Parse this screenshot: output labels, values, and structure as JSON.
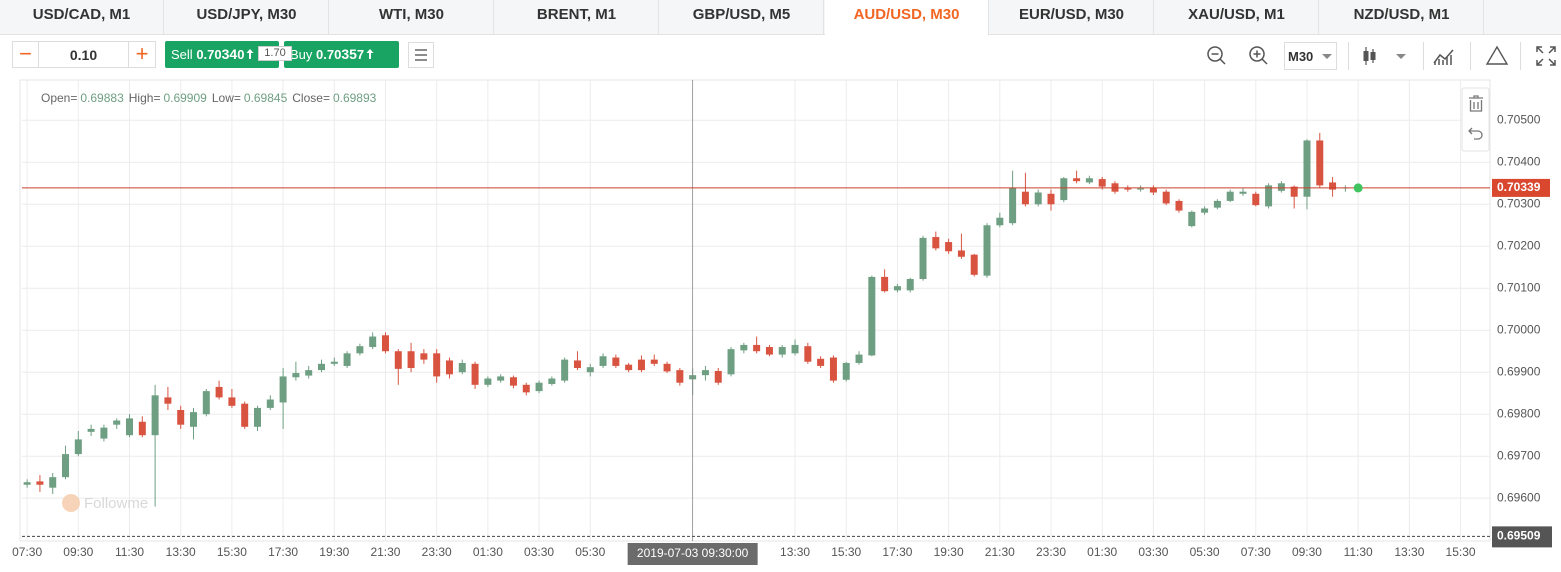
{
  "tabs": [
    "USD/CAD, M1",
    "USD/JPY, M30",
    "WTI, M30",
    "BRENT, M1",
    "GBP/USD, M5",
    "AUD/USD, M30",
    "EUR/USD, M30",
    "XAU/USD, M1",
    "NZD/USD, M1"
  ],
  "active_tab": 5,
  "toolbar": {
    "lot": "0.10",
    "sell_label": "Sell",
    "sell_head": "0.70",
    "sell_big": "34",
    "sell_tail": "0",
    "spread": "1.70",
    "buy_label": "Buy",
    "buy_head": "0.70",
    "buy_big": "35",
    "buy_tail": "7",
    "timeframe": "M30"
  },
  "chart_data": {
    "type": "candlestick",
    "ohlc_labels": [
      "Open=",
      "High=",
      "Low=",
      "Close="
    ],
    "watermark": "Followme",
    "up_color": "#6f9f82",
    "down_color": "#d95440",
    "open": [
      0.69632,
      0.6964,
      0.69625,
      0.6965,
      0.69705,
      0.69758,
      0.69742,
      0.69775,
      0.6975,
      0.69782,
      0.6975,
      0.6984,
      0.6981,
      0.6977,
      0.698,
      0.69865,
      0.6984,
      0.69825,
      0.6977,
      0.69815,
      0.69828,
      0.69888,
      0.69892,
      0.69905,
      0.6992,
      0.69915,
      0.69945,
      0.6996,
      0.69988,
      0.6995,
      0.6995,
      0.69945,
      0.69945,
      0.69928,
      0.699,
      0.6992,
      0.6987,
      0.6988,
      0.69888,
      0.6987,
      0.69855,
      0.69872,
      0.6988,
      0.69928,
      0.699,
      0.69915,
      0.69935,
      0.69918,
      0.6993,
      0.6993,
      0.6992,
      0.69905,
      0.69883,
      0.69893,
      0.69903,
      0.69895,
      0.69952,
      0.69965,
      0.6996,
      0.69942,
      0.69945,
      0.69962,
      0.69932,
      0.69935,
      0.69882,
      0.69922,
      0.6994,
      0.70127,
      0.70095,
      0.70095,
      0.70122,
      0.70222,
      0.7021,
      0.7019,
      0.7018,
      0.7013,
      0.7025,
      0.70255,
      0.7033,
      0.703,
      0.70325,
      0.7031,
      0.70362,
      0.70352,
      0.7036,
      0.7035,
      0.70338,
      0.70335,
      0.7034,
      0.7033,
      0.70308,
      0.70248,
      0.7028,
      0.70292,
      0.70308,
      0.70325,
      0.70325,
      0.70295,
      0.70332,
      0.70342,
      0.70318,
      0.70452,
      0.70352,
      0.70338
    ],
    "high": [
      0.69645,
      0.69655,
      0.6966,
      0.69725,
      0.6976,
      0.69775,
      0.69775,
      0.6979,
      0.698,
      0.69795,
      0.6987,
      0.69865,
      0.6982,
      0.69815,
      0.6986,
      0.6988,
      0.6986,
      0.6983,
      0.6982,
      0.69845,
      0.6991,
      0.69925,
      0.69915,
      0.6993,
      0.69935,
      0.6995,
      0.69968,
      0.69995,
      0.69995,
      0.69955,
      0.6997,
      0.69955,
      0.69955,
      0.69935,
      0.6993,
      0.69925,
      0.6989,
      0.69895,
      0.69892,
      0.69875,
      0.6988,
      0.6989,
      0.69935,
      0.6995,
      0.6992,
      0.69945,
      0.69942,
      0.69922,
      0.6994,
      0.69942,
      0.69925,
      0.6991,
      0.69909,
      0.69915,
      0.6991,
      0.6996,
      0.6997,
      0.69985,
      0.69965,
      0.69965,
      0.69978,
      0.6997,
      0.69938,
      0.6994,
      0.69925,
      0.6995,
      0.7013,
      0.70145,
      0.7011,
      0.70125,
      0.70225,
      0.70235,
      0.70218,
      0.7023,
      0.70182,
      0.70255,
      0.7028,
      0.7038,
      0.70375,
      0.70335,
      0.70335,
      0.70365,
      0.7038,
      0.70368,
      0.70365,
      0.70355,
      0.70345,
      0.70345,
      0.70345,
      0.70335,
      0.70312,
      0.70285,
      0.70295,
      0.70312,
      0.70335,
      0.70338,
      0.7033,
      0.7035,
      0.70355,
      0.70345,
      0.70455,
      0.7047,
      0.70365,
      0.70345
    ],
    "low": [
      0.69625,
      0.69615,
      0.6961,
      0.69645,
      0.697,
      0.69748,
      0.69735,
      0.69765,
      0.69745,
      0.69745,
      0.6958,
      0.6981,
      0.69765,
      0.6974,
      0.69795,
      0.69835,
      0.69815,
      0.69765,
      0.6976,
      0.6981,
      0.69765,
      0.6988,
      0.69885,
      0.699,
      0.69915,
      0.6991,
      0.6994,
      0.69955,
      0.69945,
      0.6987,
      0.699,
      0.6992,
      0.69875,
      0.69885,
      0.69895,
      0.6986,
      0.69865,
      0.69875,
      0.69862,
      0.69845,
      0.6985,
      0.69868,
      0.69875,
      0.69905,
      0.6989,
      0.6991,
      0.6991,
      0.699,
      0.699,
      0.69915,
      0.69898,
      0.69868,
      0.69845,
      0.6988,
      0.6987,
      0.6989,
      0.69945,
      0.69945,
      0.69938,
      0.69935,
      0.6994,
      0.6992,
      0.6991,
      0.69875,
      0.69878,
      0.69918,
      0.69938,
      0.7009,
      0.7009,
      0.7009,
      0.70118,
      0.7019,
      0.70182,
      0.7017,
      0.70128,
      0.70125,
      0.70245,
      0.7025,
      0.70295,
      0.70295,
      0.70285,
      0.70305,
      0.7035,
      0.70348,
      0.70335,
      0.70325,
      0.7033,
      0.7033,
      0.70322,
      0.70298,
      0.7028,
      0.70245,
      0.70275,
      0.70288,
      0.70305,
      0.7032,
      0.70295,
      0.7029,
      0.70328,
      0.7029,
      0.70288,
      0.7034,
      0.70318,
      0.7033
    ],
    "close": [
      0.69638,
      0.69632,
      0.6965,
      0.69705,
      0.6974,
      0.69765,
      0.69768,
      0.69785,
      0.6979,
      0.6975,
      0.69845,
      0.69825,
      0.69775,
      0.69805,
      0.69855,
      0.6984,
      0.6982,
      0.6977,
      0.69815,
      0.69835,
      0.6989,
      0.69898,
      0.69905,
      0.6992,
      0.69925,
      0.69945,
      0.69962,
      0.69985,
      0.6995,
      0.69908,
      0.6991,
      0.6993,
      0.6989,
      0.69895,
      0.69922,
      0.6987,
      0.69885,
      0.6989,
      0.69868,
      0.69852,
      0.69875,
      0.69885,
      0.6993,
      0.6991,
      0.69912,
      0.69938,
      0.69915,
      0.69905,
      0.69905,
      0.6992,
      0.69902,
      0.69875,
      0.69893,
      0.69905,
      0.69875,
      0.69955,
      0.69965,
      0.6995,
      0.69942,
      0.6996,
      0.69965,
      0.69925,
      0.69915,
      0.6988,
      0.69922,
      0.69942,
      0.70127,
      0.70093,
      0.70105,
      0.70122,
      0.7022,
      0.70195,
      0.70188,
      0.70175,
      0.70132,
      0.7025,
      0.70268,
      0.7034,
      0.703,
      0.70328,
      0.703,
      0.70362,
      0.70355,
      0.70362,
      0.70342,
      0.7033,
      0.70335,
      0.70338,
      0.70328,
      0.70302,
      0.70285,
      0.70282,
      0.7029,
      0.70308,
      0.7033,
      0.7033,
      0.70298,
      0.70345,
      0.7035,
      0.70318,
      0.70452,
      0.70345,
      0.70335,
      0.7034
    ],
    "cursor_index": 52,
    "cursor_label": {
      "value": 52,
      "label": "2019-07-03 09:30:00"
    },
    "last_price": 0.70339,
    "low_marker": 0.69509,
    "xlim": [
      -0.4,
      114.3
    ],
    "xticks": [
      {
        "value": 0,
        "label": "07:30"
      },
      {
        "value": 4,
        "label": "09:30"
      },
      {
        "value": 8,
        "label": "11:30"
      },
      {
        "value": 12,
        "label": "13:30"
      },
      {
        "value": 16,
        "label": "15:30"
      },
      {
        "value": 20,
        "label": "17:30"
      },
      {
        "value": 24,
        "label": "19:30"
      },
      {
        "value": 28,
        "label": "21:30"
      },
      {
        "value": 32,
        "label": "23:30"
      },
      {
        "value": 36,
        "label": "01:30"
      },
      {
        "value": 40,
        "label": "03:30"
      },
      {
        "value": 44,
        "label": "05:30"
      },
      {
        "value": 60,
        "label": "13:30"
      },
      {
        "value": 64,
        "label": "15:30"
      },
      {
        "value": 68,
        "label": "17:30"
      },
      {
        "value": 72,
        "label": "19:30"
      },
      {
        "value": 76,
        "label": "21:30"
      },
      {
        "value": 80,
        "label": "23:30"
      },
      {
        "value": 84,
        "label": "01:30"
      },
      {
        "value": 88,
        "label": "03:30"
      },
      {
        "value": 92,
        "label": "05:30"
      },
      {
        "value": 96,
        "label": "07:30"
      },
      {
        "value": 100,
        "label": "09:30"
      },
      {
        "value": 104,
        "label": "11:30"
      },
      {
        "value": 108,
        "label": "13:30"
      },
      {
        "value": 112,
        "label": "15:30"
      }
    ],
    "ylim": [
      0.69498,
      0.70596
    ],
    "yticks": [
      {
        "value": 0.696,
        "label": "0.69600"
      },
      {
        "value": 0.697,
        "label": "0.69700"
      },
      {
        "value": 0.698,
        "label": "0.69800"
      },
      {
        "value": 0.699,
        "label": "0.69900"
      },
      {
        "value": 0.7,
        "label": "0.70000"
      },
      {
        "value": 0.701,
        "label": "0.70100"
      },
      {
        "value": 0.702,
        "label": "0.70200"
      },
      {
        "value": 0.703,
        "label": "0.70300"
      },
      {
        "value": 0.704,
        "label": "0.70400"
      },
      {
        "value": 0.705,
        "label": "0.70500"
      }
    ],
    "grid": true
  }
}
